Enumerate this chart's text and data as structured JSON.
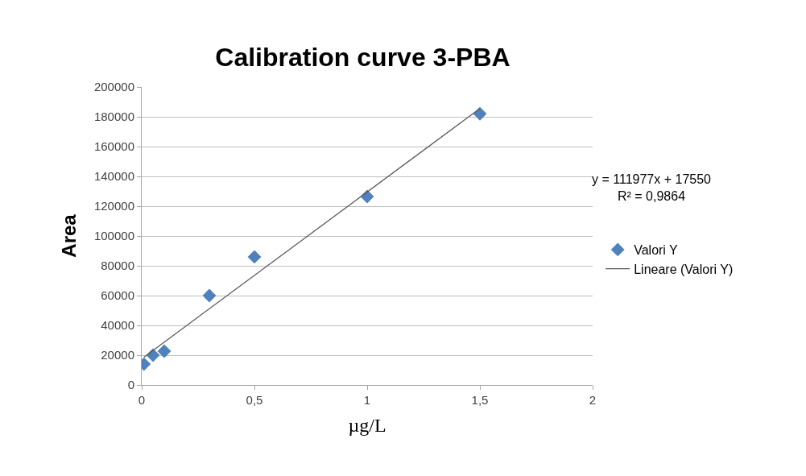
{
  "chart_data": {
    "type": "scatter",
    "title": "Calibration curve 3-PBA",
    "xlabel": "µg/L",
    "ylabel": "Area",
    "xlim": [
      0,
      2
    ],
    "xticks": [
      0,
      {
        "value": 0.5,
        "label": "0,5"
      },
      1,
      {
        "value": 1.5,
        "label": "1,5"
      },
      2
    ],
    "ylim": [
      0,
      200000
    ],
    "yticks": [
      0,
      20000,
      40000,
      60000,
      80000,
      100000,
      120000,
      140000,
      160000,
      180000,
      200000
    ],
    "grid": "y",
    "legend": "right",
    "annotations": [
      "y = 111977x + 17550",
      "R² = 0,9864"
    ],
    "series": [
      {
        "name": "Valori Y",
        "marker": "diamond",
        "color": "#4f81bd",
        "x": [
          0.01,
          0.05,
          0.1,
          0.3,
          0.5,
          1,
          1.5
        ],
        "values": [
          14000,
          20000,
          22700,
          60000,
          86000,
          126500,
          182000
        ]
      },
      {
        "name": "Lineare (Valori Y)",
        "type": "line",
        "color": "#595959",
        "x": [
          0.01,
          1.5
        ],
        "values": [
          18700,
          185500
        ]
      }
    ]
  }
}
